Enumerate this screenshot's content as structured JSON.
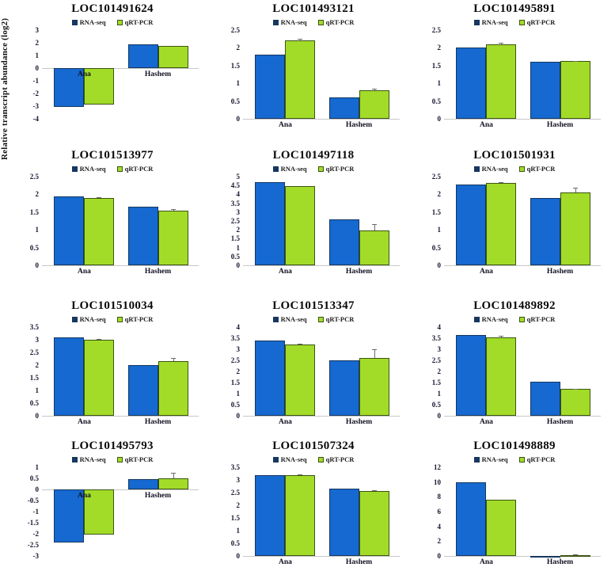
{
  "figure": {
    "ylabel": "Relative transcript abundance (log2)",
    "legend": {
      "rna_label": "RNA-seq",
      "qpcr_label": "qRT-PCR"
    },
    "colors": {
      "rna_fill": "#1569d0",
      "rna_border": "#16375f",
      "qpcr_fill": "#a2dc28",
      "qpcr_border": "#3c5412",
      "baseline": "#c8c8c8",
      "error": "#6b6b6b"
    }
  },
  "chart_data": [
    {
      "type": "bar",
      "title": "LOC101491624",
      "categories": [
        "Ana",
        "Hashem"
      ],
      "ylim": [
        -4,
        3
      ],
      "yticks": [
        3,
        2,
        1,
        0,
        -1,
        -2,
        -3,
        -4
      ],
      "series": [
        {
          "name": "RNA-seq",
          "values": [
            -3.05,
            1.9
          ],
          "errors": [
            0,
            0
          ]
        },
        {
          "name": "qRT-PCR",
          "values": [
            -2.9,
            1.75
          ],
          "errors": [
            0,
            0
          ]
        }
      ]
    },
    {
      "type": "bar",
      "title": "LOC101493121",
      "categories": [
        "Ana",
        "Hashem"
      ],
      "ylim": [
        0,
        2.5
      ],
      "yticks": [
        2.5,
        2,
        1.5,
        1,
        0.5,
        0
      ],
      "series": [
        {
          "name": "RNA-seq",
          "values": [
            1.8,
            0.6
          ],
          "errors": [
            0,
            0
          ]
        },
        {
          "name": "qRT-PCR",
          "values": [
            2.2,
            0.8
          ],
          "errors": [
            0.06,
            0.05
          ]
        }
      ]
    },
    {
      "type": "bar",
      "title": "LOC101495891",
      "categories": [
        "Ana",
        "Hashem"
      ],
      "ylim": [
        0,
        2.5
      ],
      "yticks": [
        2.5,
        2,
        1.5,
        1,
        0.5,
        0
      ],
      "series": [
        {
          "name": "RNA-seq",
          "values": [
            2.0,
            1.6
          ],
          "errors": [
            0,
            0
          ]
        },
        {
          "name": "qRT-PCR",
          "values": [
            2.1,
            1.62
          ],
          "errors": [
            0.05,
            0.02
          ]
        }
      ]
    },
    {
      "type": "bar",
      "title": "LOC101513977",
      "categories": [
        "Ana",
        "Hashem"
      ],
      "ylim": [
        0,
        2.5
      ],
      "yticks": [
        2.5,
        2,
        1.5,
        1,
        0.5,
        0
      ],
      "series": [
        {
          "name": "RNA-seq",
          "values": [
            1.95,
            1.65
          ],
          "errors": [
            0,
            0
          ]
        },
        {
          "name": "qRT-PCR",
          "values": [
            1.9,
            1.55
          ],
          "errors": [
            0.03,
            0.04
          ]
        }
      ]
    },
    {
      "type": "bar",
      "title": "LOC101497118",
      "categories": [
        "Ana",
        "Hashem"
      ],
      "ylim": [
        0,
        5
      ],
      "yticks": [
        5,
        4.5,
        4,
        3.5,
        3,
        2.5,
        2,
        1.5,
        1,
        0.5,
        0
      ],
      "series": [
        {
          "name": "RNA-seq",
          "values": [
            4.7,
            2.6
          ],
          "errors": [
            0,
            0
          ]
        },
        {
          "name": "qRT-PCR",
          "values": [
            4.45,
            1.95
          ],
          "errors": [
            0,
            0.35
          ]
        }
      ]
    },
    {
      "type": "bar",
      "title": "LOC101501931",
      "categories": [
        "Ana",
        "Hashem"
      ],
      "ylim": [
        0,
        2.5
      ],
      "yticks": [
        2.5,
        2,
        1.5,
        1,
        0.5,
        0
      ],
      "series": [
        {
          "name": "RNA-seq",
          "values": [
            2.28,
            1.9
          ],
          "errors": [
            0,
            0
          ]
        },
        {
          "name": "qRT-PCR",
          "values": [
            2.32,
            2.05
          ],
          "errors": [
            0.03,
            0.13
          ]
        }
      ]
    },
    {
      "type": "bar",
      "title": "LOC101510034",
      "categories": [
        "Ana",
        "Hashem"
      ],
      "ylim": [
        0,
        3.5
      ],
      "yticks": [
        3.5,
        3,
        2.5,
        2,
        1.5,
        1,
        0.5,
        0
      ],
      "series": [
        {
          "name": "RNA-seq",
          "values": [
            3.1,
            2.0
          ],
          "errors": [
            0,
            0
          ]
        },
        {
          "name": "qRT-PCR",
          "values": [
            3.0,
            2.15
          ],
          "errors": [
            0.03,
            0.12
          ]
        }
      ]
    },
    {
      "type": "bar",
      "title": "LOC101513347",
      "categories": [
        "Ana",
        "Hashem"
      ],
      "ylim": [
        0,
        4
      ],
      "yticks": [
        4,
        3.5,
        3,
        2.5,
        2,
        1.5,
        1,
        0.5,
        0
      ],
      "series": [
        {
          "name": "RNA-seq",
          "values": [
            3.4,
            2.5
          ],
          "errors": [
            0,
            0
          ]
        },
        {
          "name": "qRT-PCR",
          "values": [
            3.2,
            2.6
          ],
          "errors": [
            0.04,
            0.4
          ]
        }
      ]
    },
    {
      "type": "bar",
      "title": "LOC101489892",
      "categories": [
        "Ana",
        "Hashem"
      ],
      "ylim": [
        0,
        4
      ],
      "yticks": [
        4,
        3.5,
        3,
        2.5,
        2,
        1.5,
        1,
        0.5,
        0
      ],
      "series": [
        {
          "name": "RNA-seq",
          "values": [
            3.65,
            1.55
          ],
          "errors": [
            0,
            0
          ]
        },
        {
          "name": "qRT-PCR",
          "values": [
            3.55,
            1.2
          ],
          "errors": [
            0.05,
            0.03
          ]
        }
      ]
    },
    {
      "type": "bar",
      "title": "LOC101495793",
      "categories": [
        "Ana",
        "Hashem"
      ],
      "ylim": [
        -3,
        1
      ],
      "yticks": [
        1,
        0.5,
        0,
        -0.5,
        -1,
        -1.5,
        -2,
        -2.5,
        -3
      ],
      "series": [
        {
          "name": "RNA-seq",
          "values": [
            -2.4,
            0.45
          ],
          "errors": [
            0,
            0
          ]
        },
        {
          "name": "qRT-PCR",
          "values": [
            -2.05,
            0.5
          ],
          "errors": [
            0,
            0.25
          ]
        }
      ]
    },
    {
      "type": "bar",
      "title": "LOC101507324",
      "categories": [
        "Ana",
        "Hashem"
      ],
      "ylim": [
        0,
        3.5
      ],
      "yticks": [
        3.5,
        3,
        2.5,
        2,
        1.5,
        1,
        0.5,
        0
      ],
      "series": [
        {
          "name": "RNA-seq",
          "values": [
            3.2,
            2.65
          ],
          "errors": [
            0,
            0
          ]
        },
        {
          "name": "qRT-PCR",
          "values": [
            3.2,
            2.55
          ],
          "errors": [
            0.03,
            0.03
          ]
        }
      ]
    },
    {
      "type": "bar",
      "title": "LOC101498889",
      "categories": [
        "Ana",
        "Hashem"
      ],
      "ylim": [
        0,
        12
      ],
      "yticks": [
        12,
        10,
        8,
        6,
        4,
        2,
        0
      ],
      "series": [
        {
          "name": "RNA-seq",
          "values": [
            10,
            0.05
          ],
          "errors": [
            0,
            0
          ]
        },
        {
          "name": "qRT-PCR",
          "values": [
            7.6,
            0.1
          ],
          "errors": [
            0,
            0.15
          ]
        }
      ]
    }
  ]
}
